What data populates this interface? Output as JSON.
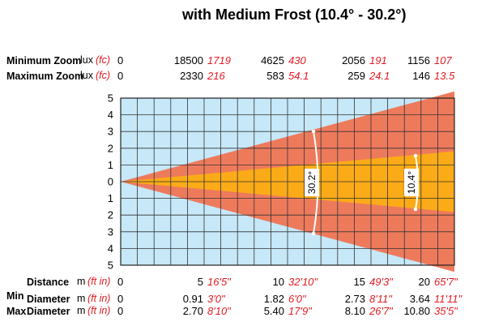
{
  "title": "with Medium Frost (10.4° - 30.2°)",
  "units": {
    "lux": "lux",
    "fc": "(fc)",
    "m": "m",
    "ftin": "(ft in)"
  },
  "rows": {
    "min_zoom": {
      "label": "Minimum Zoom",
      "zero": "0",
      "values": [
        {
          "lux": "18500",
          "fc": "1719"
        },
        {
          "lux": "4625",
          "fc": "430"
        },
        {
          "lux": "2056",
          "fc": "191"
        },
        {
          "lux": "1156",
          "fc": "107"
        }
      ]
    },
    "max_zoom": {
      "label": "Maximum Zoom",
      "zero": "0",
      "values": [
        {
          "lux": "2330",
          "fc": "216"
        },
        {
          "lux": "583",
          "fc": "54.1"
        },
        {
          "lux": "259",
          "fc": "24.1"
        },
        {
          "lux": "146",
          "fc": "13.5"
        }
      ]
    },
    "distance": {
      "label": "Distance",
      "zero": "0",
      "values": [
        {
          "m": "5",
          "ft": "16'5\""
        },
        {
          "m": "10",
          "ft": "32'10\""
        },
        {
          "m": "15",
          "ft": "49'3\""
        },
        {
          "m": "20",
          "ft": "65'7\""
        }
      ]
    },
    "min_diameter": {
      "label1": "Min",
      "label2": "Diameter",
      "zero": "0",
      "values": [
        {
          "m": "0.91",
          "ft": "3'0\""
        },
        {
          "m": "1.82",
          "ft": "6'0\""
        },
        {
          "m": "2.73",
          "ft": "8'11\""
        },
        {
          "m": "3.64",
          "ft": "11'11\""
        }
      ]
    },
    "max_diameter": {
      "label1": "Max",
      "label2": "Diameter",
      "zero": "0",
      "values": [
        {
          "m": "2.70",
          "ft": "8'10\""
        },
        {
          "m": "5.40",
          "ft": "17'9\""
        },
        {
          "m": "8.10",
          "ft": "26'7\""
        },
        {
          "m": "10.80",
          "ft": "35'5\""
        }
      ]
    }
  },
  "diagram": {
    "y_ticks": [
      "5",
      "4",
      "3",
      "2",
      "1",
      "0",
      "1",
      "2",
      "3",
      "4",
      "5"
    ],
    "distance_max_m": 20,
    "half_extent_m": 5,
    "grid_cols": 20,
    "grid_rows": 10,
    "wide_angle_label": "30.2°",
    "narrow_angle_label": "10.4°",
    "wide_half_at_max_m": 5.4,
    "narrow_half_at_max_m": 1.82,
    "colors": {
      "background": "#c6e8f8",
      "wide_beam": "#ee7a5c",
      "narrow_beam": "#fbab17",
      "grid": "#333333",
      "label_red": "#e31b23"
    }
  }
}
